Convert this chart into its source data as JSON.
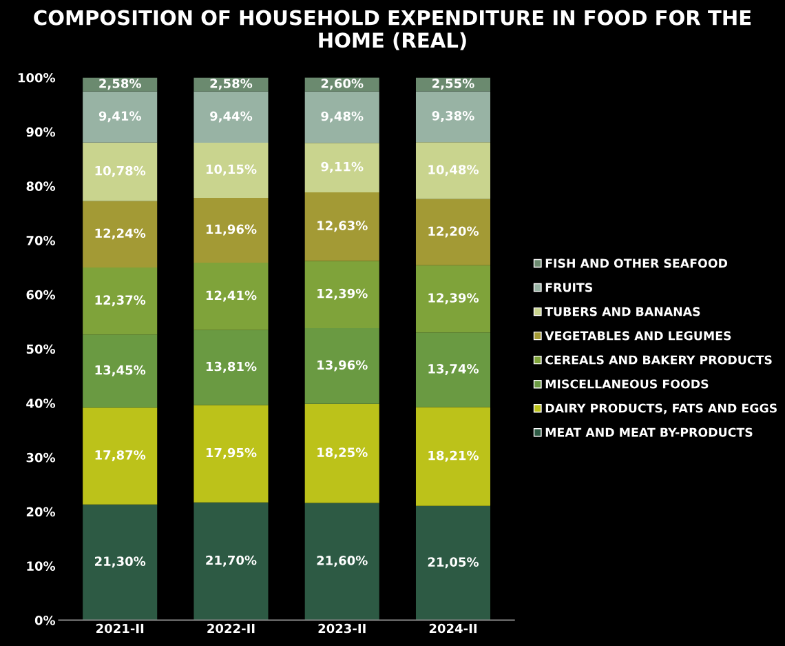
{
  "chart_data": {
    "type": "bar",
    "title": "COMPOSITION OF HOUSEHOLD EXPENDITURE IN FOOD FOR THE HOME (REAL)",
    "categories": [
      "2021-II",
      "2022-II",
      "2023-II",
      "2024-II"
    ],
    "stacked": true,
    "series": [
      {
        "name": "MEAT AND MEAT BY-PRODUCTS",
        "color": "#2d5a44",
        "values": [
          21.3,
          21.7,
          21.6,
          21.05
        ],
        "value_labels": [
          "21,30%",
          "21,70%",
          "21,60%",
          "21,05%"
        ]
      },
      {
        "name": "DAIRY PRODUCTS, FATS AND EGGS",
        "color": "#bcc21a",
        "values": [
          17.87,
          17.95,
          18.25,
          18.21
        ],
        "value_labels": [
          "17,87%",
          "17,95%",
          "18,25%",
          "18,21%"
        ]
      },
      {
        "name": "MISCELLANEOUS FOODS",
        "color": "#6a9a42",
        "values": [
          13.45,
          13.81,
          13.96,
          13.74
        ],
        "value_labels": [
          "13,45%",
          "13,81%",
          "13,96%",
          "13,74%"
        ]
      },
      {
        "name": "CEREALS AND BAKERY PRODUCTS",
        "color": "#7fa33a",
        "values": [
          12.37,
          12.41,
          12.39,
          12.39
        ],
        "value_labels": [
          "12,37%",
          "12,41%",
          "12,39%",
          "12,39%"
        ]
      },
      {
        "name": "VEGETABLES AND LEGUMES",
        "color": "#a39a35",
        "values": [
          12.24,
          11.96,
          12.63,
          12.2
        ],
        "value_labels": [
          "12,24%",
          "11,96%",
          "12,63%",
          "12,20%"
        ]
      },
      {
        "name": "TUBERS AND BANANAS",
        "color": "#c9d48e",
        "values": [
          10.78,
          10.15,
          9.11,
          10.48
        ],
        "value_labels": [
          "10,78%",
          "10,15%",
          "9,11%",
          "10,48%"
        ]
      },
      {
        "name": "FRUITS",
        "color": "#98b3a4",
        "values": [
          9.41,
          9.44,
          9.48,
          9.38
        ],
        "value_labels": [
          "9,41%",
          "9,44%",
          "9,48%",
          "9,38%"
        ]
      },
      {
        "name": "FISH AND OTHER SEAFOOD",
        "color": "#6b8a6f",
        "values": [
          2.58,
          2.58,
          2.6,
          2.55
        ],
        "value_labels": [
          "2,58%",
          "2,58%",
          "2,60%",
          "2,55%"
        ]
      }
    ],
    "ylim": [
      0,
      100
    ],
    "yticks": [
      {
        "value": 0,
        "label": "0%"
      },
      {
        "value": 10,
        "label": "10%"
      },
      {
        "value": 20,
        "label": "20%"
      },
      {
        "value": 30,
        "label": "30%"
      },
      {
        "value": 40,
        "label": "40%"
      },
      {
        "value": 50,
        "label": "50%"
      },
      {
        "value": 60,
        "label": "60%"
      },
      {
        "value": 70,
        "label": "70%"
      },
      {
        "value": 80,
        "label": "80%"
      },
      {
        "value": 90,
        "label": "90%"
      },
      {
        "value": 100,
        "label": "100%"
      }
    ],
    "grid": false,
    "legend": "right"
  }
}
